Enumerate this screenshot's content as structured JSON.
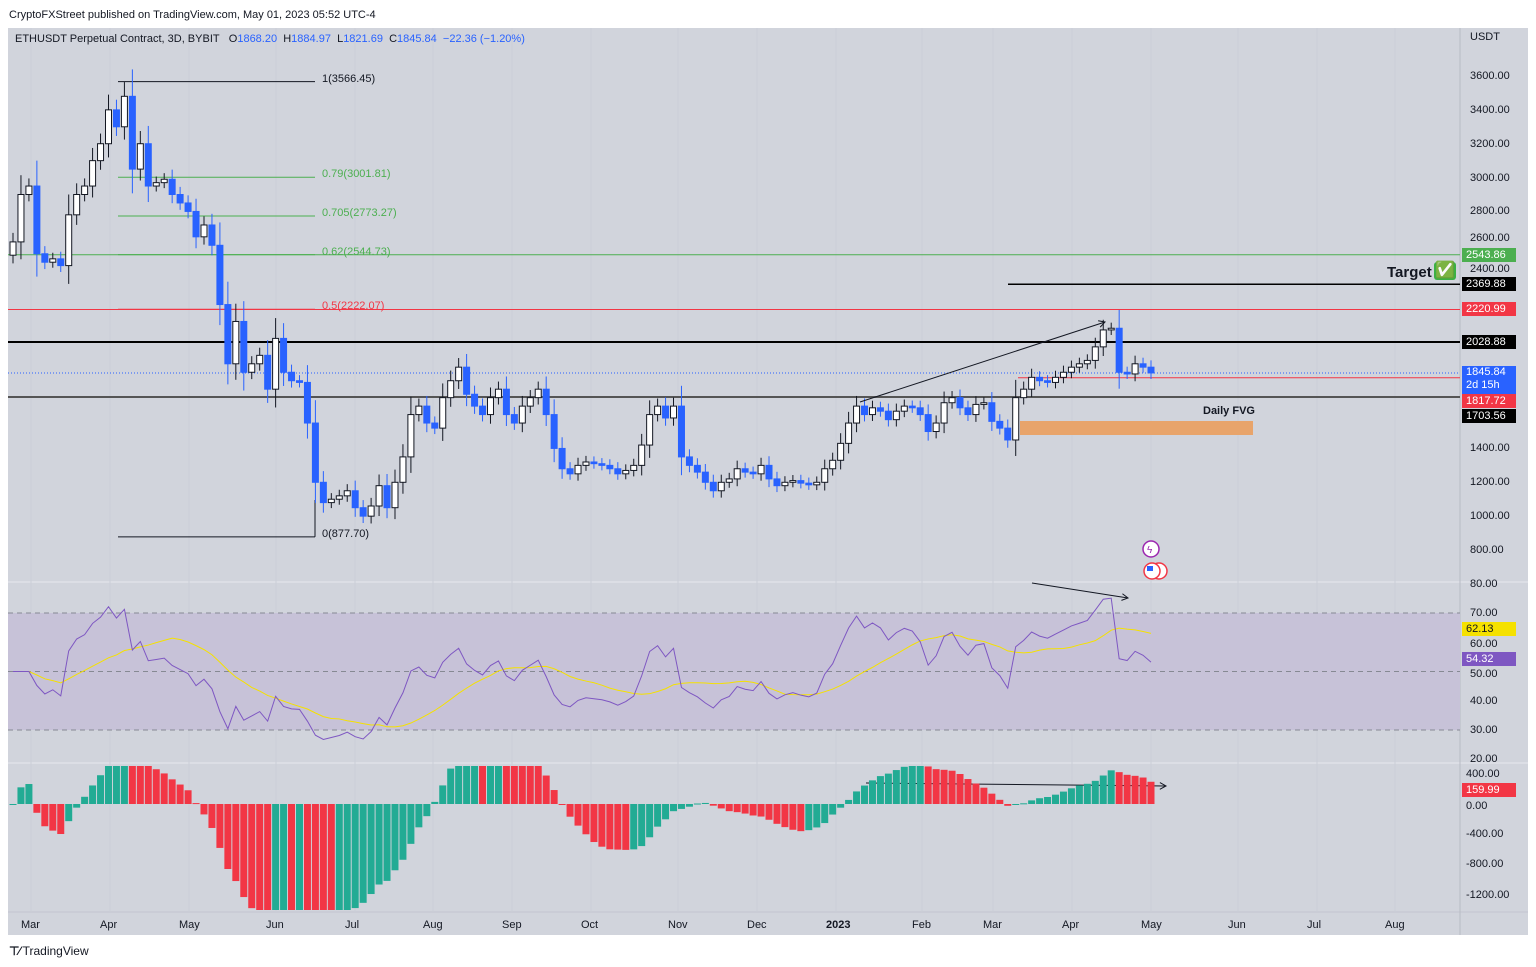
{
  "publisher_line": "CryptoFXStreet published on TradingView.com, May 01, 2023 05:52 UTC-4",
  "legend": {
    "symbol": "ETHUSDT Perpetual Contract, 3D, BYBIT",
    "o_label": "O",
    "o": "1868.20",
    "h_label": "H",
    "h": "1884.97",
    "l_label": "L",
    "l": "1821.69",
    "c_label": "C",
    "c": "1845.84",
    "change": "−22.36 (−1.20%)"
  },
  "currency": "USDT",
  "footer_logo": "TradingView",
  "colors": {
    "up": "#ffffff",
    "down": "#2962ff",
    "bg": "#d1d4dc",
    "green": "#4caf50",
    "red": "#f23645",
    "rsi": "#7e57c2",
    "rsi_ma": "#f5e100",
    "teal": "#22ab94"
  },
  "chart_data": {
    "type": "candlestick",
    "title": "ETHUSDT Perpetual Contract, 3D, BYBIT",
    "ylabel": "USDT",
    "ylim": [
      700,
      3700
    ],
    "price_ticks": [
      "3600.00",
      "3400.00",
      "3200.00",
      "3000.00",
      "2800.00",
      "2600.00",
      "2400.00",
      "1400.00",
      "1200.00",
      "1000.00",
      "800.00"
    ],
    "time_ticks": [
      "Mar",
      "Apr",
      "May",
      "Jun",
      "Jul",
      "Aug",
      "Sep",
      "Oct",
      "Nov",
      "Dec",
      "2023",
      "Feb",
      "Mar",
      "Apr",
      "May",
      "Jun",
      "Jul",
      "Aug"
    ],
    "candles": {
      "close": [
        2620,
        2900,
        2950,
        2550,
        2500,
        2520,
        2480,
        2780,
        2900,
        2950,
        3100,
        3200,
        3400,
        3300,
        3480,
        3050,
        3200,
        2950,
        2970,
        2990,
        2900,
        2850,
        2800,
        2650,
        2720,
        2600,
        2250,
        1900,
        2150,
        1850,
        1900,
        1950,
        1750,
        2050,
        1850,
        1800,
        1790,
        1550,
        1200,
        1080,
        1100,
        1120,
        1150,
        1050,
        1000,
        1060,
        1180,
        1050,
        1200,
        1350,
        1600,
        1650,
        1550,
        1520,
        1700,
        1800,
        1880,
        1720,
        1650,
        1600,
        1700,
        1750,
        1600,
        1550,
        1650,
        1700,
        1750,
        1600,
        1400,
        1280,
        1250,
        1300,
        1320,
        1310,
        1300,
        1280,
        1250,
        1270,
        1300,
        1420,
        1600,
        1650,
        1580,
        1650,
        1350,
        1300,
        1260,
        1200,
        1150,
        1200,
        1220,
        1280,
        1260,
        1250,
        1300,
        1220,
        1180,
        1200,
        1210,
        1195,
        1185,
        1200,
        1280,
        1330,
        1430,
        1550,
        1650,
        1600,
        1640,
        1620,
        1570,
        1620,
        1650,
        1640,
        1600,
        1500,
        1550,
        1670,
        1700,
        1640,
        1600,
        1660,
        1670,
        1560,
        1520,
        1450,
        1700,
        1750,
        1820,
        1800,
        1790,
        1820,
        1850,
        1880,
        1900,
        1920,
        2000,
        2100,
        2110,
        1850,
        1840,
        1900,
        1880,
        1846
      ]
    },
    "fib_levels": [
      {
        "label": "1(3566.45)",
        "value": 3566.45,
        "color": "#131722"
      },
      {
        "label": "0.79(3001.81)",
        "value": 3001.81,
        "color": "#4caf50"
      },
      {
        "label": "0.705(2773.27)",
        "value": 2773.27,
        "color": "#4caf50"
      },
      {
        "label": "0.62(2544.73)",
        "value": 2544.73,
        "color": "#4caf50"
      },
      {
        "label": "0.5(2222.07)",
        "value": 2222.07,
        "color": "#f23645"
      },
      {
        "label": "0(877.70)",
        "value": 877.7,
        "color": "#131722"
      }
    ],
    "price_tags": [
      {
        "label": "2543.86",
        "value": 2543.86,
        "color": "#4caf50"
      },
      {
        "label": "2369.88",
        "value": 2369.88,
        "color": "#000000"
      },
      {
        "label": "2220.99",
        "value": 2220.99,
        "color": "#f23645"
      },
      {
        "label": "2028.88",
        "value": 2028.88,
        "color": "#000000"
      },
      {
        "label": "1845.84",
        "sub": "2d 15h",
        "value": 1845.84,
        "color": "#2962ff"
      },
      {
        "label": "1817.72",
        "value": 1817.72,
        "color": "#f23645"
      },
      {
        "label": "1703.56",
        "value": 1703.56,
        "color": "#000000"
      }
    ],
    "annotations": {
      "target": "Target",
      "target_icon": "✅",
      "fvg": "Daily FVG",
      "fvg_range": [
        1480,
        1560
      ]
    },
    "rsi": {
      "ticks": [
        "80.00",
        "70.00",
        "60.00",
        "50.00",
        "40.00",
        "30.00",
        "20.00"
      ],
      "rsi_value": "54.32",
      "ma_value": "62.13",
      "upper": 70,
      "mid": 50,
      "lower": 30
    },
    "momentum": {
      "ticks": [
        "400.00",
        "0.00",
        "-400.00",
        "-800.00",
        "-1200.00"
      ],
      "value": "159.99"
    }
  }
}
